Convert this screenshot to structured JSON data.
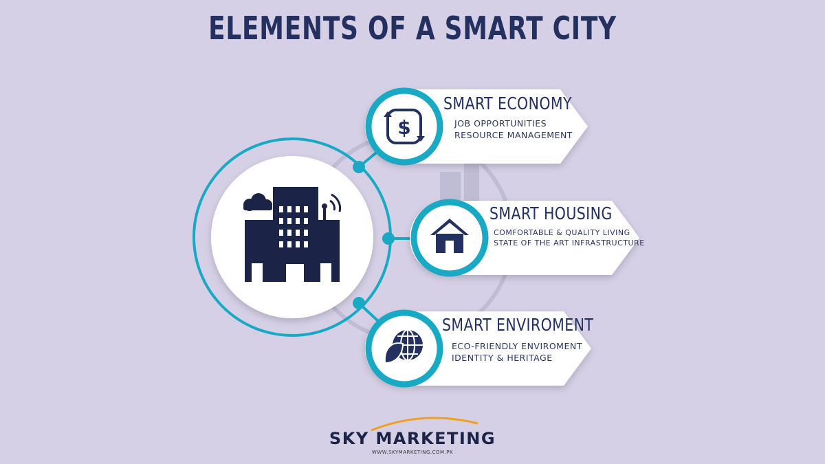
{
  "title": "ELEMENTS OF A SMART CITY",
  "colors": {
    "background": "#d6d0e6",
    "accent": "#1aa9c4",
    "navy": "#233060",
    "card": "#ffffff",
    "brand_arc": "#f0a020"
  },
  "center_node": {
    "icon": "smart-city-buildings-icon"
  },
  "cards": [
    {
      "title": "SMART ECONOMY",
      "icon": "dollar-exchange-icon",
      "lines": [
        "JOB OPPORTUNITIES",
        "RESOURCE MANAGEMENT"
      ]
    },
    {
      "title": "SMART HOUSING",
      "icon": "house-icon",
      "lines": [
        "COMFORTABLE & QUALITY LIVING",
        "STATE OF THE ART INFRASTRUCTURE"
      ]
    },
    {
      "title": "SMART ENVIROMENT",
      "icon": "eco-globe-leaf-icon",
      "lines": [
        "ECO-FRIENDLY ENVIROMENT",
        "IDENTITY & HERITAGE"
      ]
    }
  ],
  "brand": {
    "name": "SKY MARKETING",
    "url": "WWW.SKYMARKETING.COM.PK"
  }
}
